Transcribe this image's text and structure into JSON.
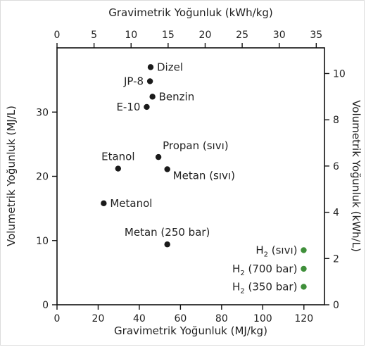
{
  "chart_data": {
    "type": "scatter",
    "xlabel": "Gravimetrik Yoğunluk (MJ/kg)",
    "ylabel": "Volumetrik Yoğunluk (MJ/L)",
    "x2label": "Gravimetrik Yoğunluk (kWh/kg)",
    "y2label": "Volumetrik Yoğunluk (kWh/L)",
    "xlim": [
      0,
      130
    ],
    "ylim": [
      0,
      40
    ],
    "x2lim": [
      0,
      36.11
    ],
    "y2lim": [
      0,
      11.11
    ],
    "xticks": [
      "0",
      "20",
      "40",
      "60",
      "80",
      "100",
      "120"
    ],
    "yticks": [
      "0",
      "10",
      "20",
      "30"
    ],
    "x2ticks": [
      "0",
      "5",
      "10",
      "15",
      "20",
      "25",
      "30",
      "35"
    ],
    "y2ticks": [
      "0",
      "2",
      "4",
      "6",
      "8",
      "10"
    ],
    "grid": false,
    "legend": "none",
    "colors": {
      "conventional": "#1a1a1a",
      "hydrogen": "#3f8f3a"
    },
    "points": [
      {
        "label": "Dizel",
        "x": 45.5,
        "y": 37.0,
        "group": "conventional",
        "label_side": "right"
      },
      {
        "label": "JP-8",
        "x": 45.2,
        "y": 34.8,
        "group": "conventional",
        "label_side": "left"
      },
      {
        "label": "Benzin",
        "x": 46.4,
        "y": 32.4,
        "group": "conventional",
        "label_side": "right"
      },
      {
        "label": "E-10",
        "x": 43.6,
        "y": 30.8,
        "group": "conventional",
        "label_side": "left"
      },
      {
        "label": "Propan (sıvı)",
        "x": 49.3,
        "y": 23.0,
        "group": "conventional",
        "label_side": "above-right"
      },
      {
        "label": "Etanol",
        "x": 29.7,
        "y": 21.2,
        "group": "conventional",
        "label_side": "above"
      },
      {
        "label": "Metan (sıvı)",
        "x": 53.6,
        "y": 21.1,
        "group": "conventional",
        "label_side": "below-right"
      },
      {
        "label": "Metanol",
        "x": 22.7,
        "y": 15.8,
        "group": "conventional",
        "label_side": "right"
      },
      {
        "label": "Metan (250 bar)",
        "x": 53.6,
        "y": 9.4,
        "group": "conventional",
        "label_side": "above"
      },
      {
        "label_main": "H",
        "label_sub": "2",
        "label_rest": " (sıvı)",
        "x": 119.9,
        "y": 8.5,
        "group": "hydrogen",
        "label_side": "left"
      },
      {
        "label_main": "H",
        "label_sub": "2",
        "label_rest": " (700 bar)",
        "x": 119.9,
        "y": 5.6,
        "group": "hydrogen",
        "label_side": "left"
      },
      {
        "label_main": "H",
        "label_sub": "2",
        "label_rest": " (350 bar)",
        "x": 119.9,
        "y": 2.8,
        "group": "hydrogen",
        "label_side": "left"
      }
    ]
  }
}
